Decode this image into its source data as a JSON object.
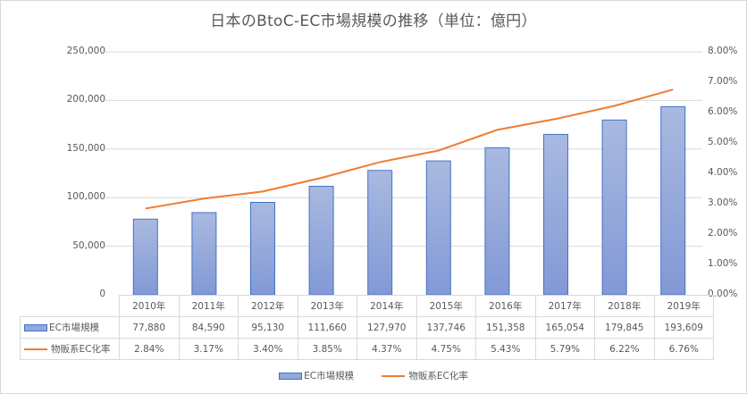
{
  "title": "日本のBtoC-EC市場規模の推移（単位：億円）",
  "chart_data": {
    "type": "bar+line",
    "title": "日本のBtoC-EC市場規模の推移（単位：億円）",
    "categories": [
      "2010年",
      "2011年",
      "2012年",
      "2013年",
      "2014年",
      "2015年",
      "2016年",
      "2017年",
      "2018年",
      "2019年"
    ],
    "series": [
      {
        "name": "EC市場規模",
        "type": "bar",
        "axis": "left",
        "color": "#8faadc",
        "border": "#4472c4",
        "values": [
          77880,
          84590,
          95130,
          111660,
          127970,
          137746,
          151358,
          165054,
          179845,
          193609
        ],
        "labels": [
          "77,880",
          "84,590",
          "95,130",
          "111,660",
          "127,970",
          "137,746",
          "151,358",
          "165,054",
          "179,845",
          "193,609"
        ]
      },
      {
        "name": "物販系EC化率",
        "type": "line",
        "axis": "right",
        "color": "#ed7d31",
        "values": [
          2.84,
          3.17,
          3.4,
          3.85,
          4.37,
          4.75,
          5.43,
          5.79,
          6.22,
          6.76
        ],
        "labels": [
          "2.84%",
          "3.17%",
          "3.40%",
          "3.85%",
          "4.37%",
          "4.75%",
          "5.43%",
          "5.79%",
          "6.22%",
          "6.76%"
        ]
      }
    ],
    "ylim_left": [
      0,
      250000
    ],
    "ylim_right": [
      0,
      8
    ],
    "yticks_left": [
      "250,000",
      "200,000",
      "150,000",
      "100,000",
      "50,000",
      "0"
    ],
    "yticks_right": [
      "8.00%",
      "7.00%",
      "6.00%",
      "5.00%",
      "4.00%",
      "3.00%",
      "2.00%",
      "1.00%",
      "0.00%"
    ],
    "grid": true,
    "data_table": true,
    "legend_position": "bottom"
  },
  "legend": {
    "bar": "EC市場規模",
    "line": "物販系EC化率"
  }
}
